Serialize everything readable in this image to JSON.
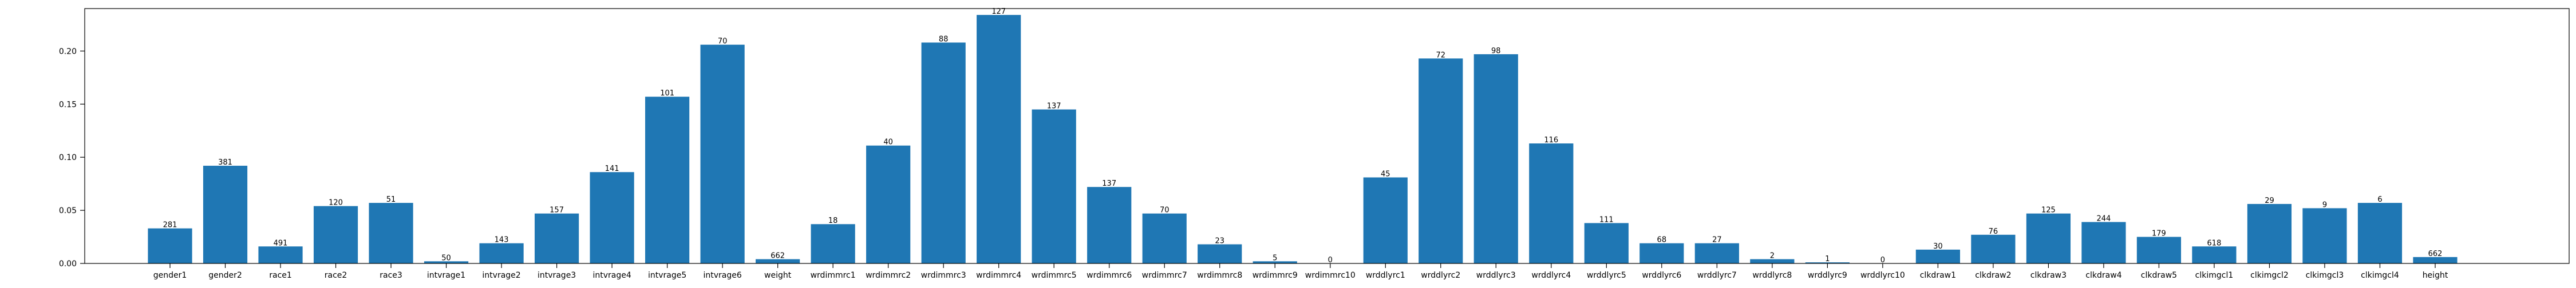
{
  "chart_data": {
    "type": "bar",
    "title": "",
    "xlabel": "",
    "ylabel": "",
    "ylim": [
      0,
      0.24
    ],
    "yticks": [
      {
        "value": 0.0,
        "label": "0.00"
      },
      {
        "value": 0.05,
        "label": "0.05"
      },
      {
        "value": 0.1,
        "label": "0.10"
      },
      {
        "value": 0.15,
        "label": "0.15"
      },
      {
        "value": 0.2,
        "label": "0.20"
      }
    ],
    "grid": false,
    "colors": {
      "bar": "#1f77b4"
    },
    "categories": [
      "gender1",
      "gender2",
      "race1",
      "race2",
      "race3",
      "intvrage1",
      "intvrage2",
      "intvrage3",
      "intvrage4",
      "intvrage5",
      "intvrage6",
      "weight",
      "wrdimmrc1",
      "wrdimmrc2",
      "wrdimmrc3",
      "wrdimmrc4",
      "wrdimmrc5",
      "wrdimmrc6",
      "wrdimmrc7",
      "wrdimmrc8",
      "wrdimmrc9",
      "wrdimmrc10",
      "wrddlyrc1",
      "wrddlyrc2",
      "wrddlyrc3",
      "wrddlyrc4",
      "wrddlyrc5",
      "wrddlyrc6",
      "wrddlyrc7",
      "wrddlyrc8",
      "wrddlyrc9",
      "wrddlyrc10",
      "clkdraw1",
      "clkdraw2",
      "clkdraw3",
      "clkdraw4",
      "clkdraw5",
      "clkimgcl1",
      "clkimgcl2",
      "clkimgcl3",
      "clkimgcl4",
      "height"
    ],
    "values": [
      0.033,
      0.092,
      0.016,
      0.054,
      0.057,
      0.002,
      0.019,
      0.047,
      0.086,
      0.157,
      0.206,
      0.004,
      0.037,
      0.111,
      0.208,
      0.234,
      0.145,
      0.072,
      0.047,
      0.018,
      0.002,
      0.0,
      0.081,
      0.193,
      0.197,
      0.113,
      0.038,
      0.019,
      0.019,
      0.004,
      0.001,
      0.0,
      0.013,
      0.027,
      0.047,
      0.039,
      0.025,
      0.016,
      0.056,
      0.052,
      0.057,
      0.006
    ],
    "bar_labels": [
      "281",
      "381",
      "491",
      "120",
      "51",
      "50",
      "143",
      "157",
      "141",
      "101",
      "70",
      "662",
      "18",
      "40",
      "88",
      "127",
      "137",
      "137",
      "70",
      "23",
      "5",
      "0",
      "45",
      "72",
      "98",
      "116",
      "111",
      "68",
      "27",
      "2",
      "1",
      "0",
      "30",
      "76",
      "125",
      "244",
      "179",
      "618",
      "29",
      "9",
      "6",
      "662"
    ]
  }
}
